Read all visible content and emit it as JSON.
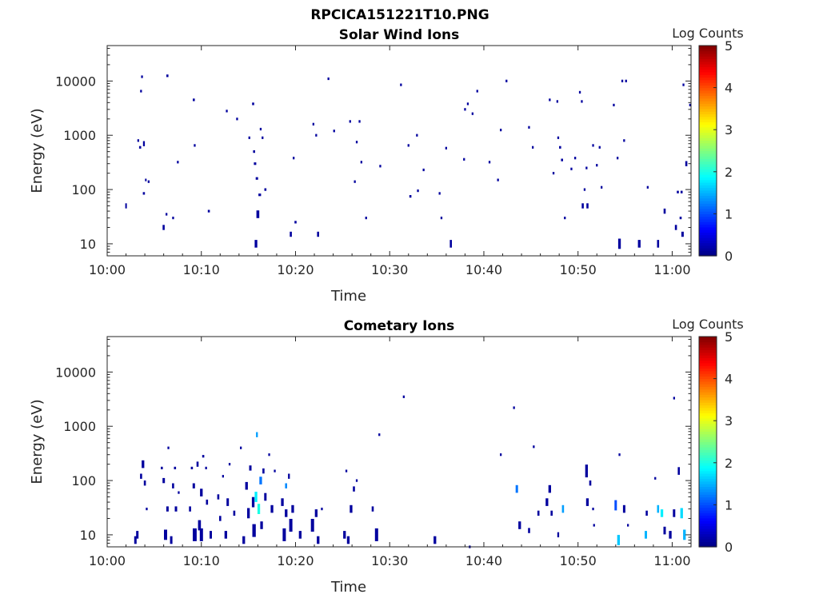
{
  "figure_title": "RPCICA151221T10.PNG",
  "chart_data": [
    {
      "type": "heatmap",
      "title": "Solar Wind Ions",
      "xlabel": "Time",
      "ylabel": "Energy (eV)",
      "x_ticks": [
        "10:00",
        "10:10",
        "10:20",
        "10:30",
        "10:40",
        "10:50",
        "11:00"
      ],
      "x_range_minutes": [
        0,
        62
      ],
      "y_ticks": [
        "10",
        "100",
        "1000",
        "10000"
      ],
      "y_scale": "log",
      "y_range": [
        6,
        45000
      ],
      "colorbar": {
        "label": "Log Counts",
        "ticks": [
          "0",
          "1",
          "2",
          "3",
          "4",
          "5"
        ],
        "range": [
          0,
          5
        ],
        "colormap": "jet"
      },
      "cells": [
        [
          2.0,
          50,
          0.6,
          2
        ],
        [
          3.3,
          800,
          0.7,
          1
        ],
        [
          3.5,
          600,
          0.8,
          1
        ],
        [
          3.7,
          12000,
          0.7,
          1
        ],
        [
          3.6,
          6500,
          0.7,
          1
        ],
        [
          3.9,
          700,
          0.7,
          2
        ],
        [
          4.1,
          150,
          0.6,
          1
        ],
        [
          4.4,
          140,
          0.7,
          1
        ],
        [
          3.9,
          85,
          0.8,
          1
        ],
        [
          6.0,
          20,
          0.8,
          2
        ],
        [
          6.3,
          35,
          0.7,
          1
        ],
        [
          6.4,
          12500,
          0.8,
          1
        ],
        [
          7.0,
          30,
          0.7,
          1
        ],
        [
          7.5,
          320,
          0.7,
          1
        ],
        [
          9.2,
          4500,
          0.8,
          1
        ],
        [
          9.3,
          650,
          0.7,
          1
        ],
        [
          10.8,
          40,
          0.8,
          1
        ],
        [
          12.7,
          2800,
          0.7,
          1
        ],
        [
          13.8,
          2000,
          0.7,
          1
        ],
        [
          15.1,
          900,
          0.7,
          1
        ],
        [
          15.5,
          3800,
          0.8,
          1
        ],
        [
          15.6,
          500,
          0.8,
          1
        ],
        [
          15.7,
          300,
          0.9,
          1
        ],
        [
          15.8,
          10,
          1.0,
          3
        ],
        [
          15.9,
          160,
          0.9,
          1
        ],
        [
          16.0,
          35,
          1.1,
          3
        ],
        [
          16.2,
          80,
          1.0,
          1
        ],
        [
          16.3,
          1300,
          0.7,
          1
        ],
        [
          16.5,
          900,
          0.7,
          1
        ],
        [
          16.8,
          100,
          0.8,
          1
        ],
        [
          19.5,
          15,
          0.8,
          2
        ],
        [
          19.8,
          380,
          0.7,
          1
        ],
        [
          20.0,
          25,
          0.8,
          1
        ],
        [
          21.9,
          1600,
          0.7,
          1
        ],
        [
          22.2,
          1000,
          0.7,
          1
        ],
        [
          22.4,
          15,
          0.8,
          2
        ],
        [
          23.5,
          11000,
          0.7,
          1
        ],
        [
          24.1,
          1200,
          0.7,
          1
        ],
        [
          25.8,
          1800,
          0.7,
          1
        ],
        [
          26.3,
          140,
          0.7,
          1
        ],
        [
          26.5,
          750,
          0.7,
          1
        ],
        [
          26.8,
          1800,
          0.7,
          1
        ],
        [
          27.0,
          320,
          0.7,
          1
        ],
        [
          27.5,
          30,
          0.7,
          1
        ],
        [
          29.0,
          270,
          0.7,
          1
        ],
        [
          31.2,
          8500,
          0.7,
          1
        ],
        [
          32.0,
          650,
          0.7,
          1
        ],
        [
          32.2,
          75,
          0.8,
          1
        ],
        [
          32.9,
          1000,
          0.7,
          1
        ],
        [
          33.0,
          95,
          0.7,
          1
        ],
        [
          33.6,
          230,
          0.7,
          1
        ],
        [
          35.3,
          85,
          0.7,
          1
        ],
        [
          35.5,
          30,
          0.7,
          1
        ],
        [
          36.0,
          580,
          0.7,
          1
        ],
        [
          36.5,
          10,
          0.8,
          3
        ],
        [
          37.9,
          360,
          0.7,
          1
        ],
        [
          38.0,
          3000,
          0.7,
          1
        ],
        [
          38.3,
          3800,
          0.7,
          1
        ],
        [
          38.8,
          2500,
          0.7,
          1
        ],
        [
          39.3,
          6500,
          0.7,
          1
        ],
        [
          40.6,
          320,
          0.7,
          1
        ],
        [
          41.8,
          1250,
          0.7,
          1
        ],
        [
          41.5,
          150,
          0.7,
          1
        ],
        [
          42.4,
          10000,
          0.7,
          1
        ],
        [
          44.8,
          1400,
          0.7,
          1
        ],
        [
          45.2,
          600,
          0.7,
          1
        ],
        [
          47.0,
          4500,
          0.7,
          1
        ],
        [
          47.4,
          200,
          0.7,
          1
        ],
        [
          47.8,
          4200,
          0.7,
          1
        ],
        [
          47.9,
          900,
          0.7,
          1
        ],
        [
          48.1,
          600,
          0.8,
          1
        ],
        [
          48.3,
          350,
          0.8,
          1
        ],
        [
          48.6,
          30,
          0.7,
          1
        ],
        [
          49.3,
          240,
          0.7,
          1
        ],
        [
          49.7,
          380,
          0.7,
          1
        ],
        [
          50.2,
          6200,
          0.7,
          1
        ],
        [
          50.4,
          4200,
          0.7,
          1
        ],
        [
          50.5,
          50,
          0.8,
          2
        ],
        [
          50.7,
          100,
          0.7,
          1
        ],
        [
          50.9,
          250,
          0.7,
          1
        ],
        [
          51.0,
          50,
          0.8,
          2
        ],
        [
          51.6,
          650,
          0.7,
          1
        ],
        [
          52.0,
          280,
          0.7,
          1
        ],
        [
          52.3,
          600,
          0.7,
          1
        ],
        [
          52.5,
          110,
          0.7,
          1
        ],
        [
          53.8,
          3600,
          0.7,
          1
        ],
        [
          54.2,
          380,
          0.7,
          1
        ],
        [
          54.4,
          10,
          1.0,
          4
        ],
        [
          54.7,
          10000,
          0.7,
          1
        ],
        [
          54.9,
          800,
          0.7,
          1
        ],
        [
          55.1,
          10000,
          0.7,
          1
        ],
        [
          56.5,
          10,
          1.0,
          3
        ],
        [
          57.4,
          110,
          0.7,
          1
        ],
        [
          58.5,
          10,
          0.8,
          3
        ],
        [
          59.2,
          40,
          0.8,
          2
        ],
        [
          60.4,
          20,
          0.8,
          2
        ],
        [
          60.6,
          90,
          0.8,
          1
        ],
        [
          60.9,
          30,
          0.8,
          1
        ],
        [
          61.0,
          90,
          0.8,
          1
        ],
        [
          61.1,
          15,
          0.9,
          2
        ],
        [
          61.2,
          8500,
          0.7,
          1
        ],
        [
          61.5,
          300,
          0.8,
          2
        ],
        [
          61.9,
          3600,
          0.7,
          1
        ]
      ]
    },
    {
      "type": "heatmap",
      "title": "Cometary Ions",
      "xlabel": "Time",
      "ylabel": "Energy (eV)",
      "x_ticks": [
        "10:00",
        "10:10",
        "10:20",
        "10:30",
        "10:40",
        "10:50",
        "11:00"
      ],
      "x_range_minutes": [
        0,
        62
      ],
      "y_ticks": [
        "10",
        "100",
        "1000",
        "10000"
      ],
      "y_scale": "log",
      "y_range": [
        6,
        45000
      ],
      "colorbar": {
        "label": "Log Counts",
        "ticks": [
          "0",
          "1",
          "2",
          "3",
          "4",
          "5"
        ],
        "range": [
          0,
          5
        ],
        "colormap": "jet"
      },
      "cells": [
        [
          3.0,
          8,
          0.9,
          3
        ],
        [
          3.2,
          10,
          0.9,
          3
        ],
        [
          3.6,
          120,
          0.8,
          2
        ],
        [
          3.8,
          200,
          1.0,
          3
        ],
        [
          4.0,
          90,
          0.8,
          2
        ],
        [
          4.2,
          30,
          0.7,
          1
        ],
        [
          5.8,
          170,
          0.8,
          1
        ],
        [
          6.0,
          100,
          0.9,
          2
        ],
        [
          6.2,
          10,
          1.2,
          4
        ],
        [
          6.4,
          30,
          0.9,
          2
        ],
        [
          6.5,
          400,
          0.7,
          1
        ],
        [
          6.8,
          8,
          0.9,
          3
        ],
        [
          7.0,
          80,
          0.8,
          2
        ],
        [
          7.2,
          170,
          0.8,
          1
        ],
        [
          7.3,
          30,
          0.9,
          2
        ],
        [
          7.6,
          60,
          0.7,
          1
        ],
        [
          8.8,
          30,
          0.8,
          2
        ],
        [
          9.0,
          170,
          0.8,
          1
        ],
        [
          9.2,
          80,
          0.9,
          2
        ],
        [
          9.3,
          10,
          1.5,
          5
        ],
        [
          9.6,
          200,
          0.8,
          2
        ],
        [
          9.8,
          15,
          1.1,
          4
        ],
        [
          10.0,
          10,
          1.2,
          5
        ],
        [
          10.0,
          60,
          1.0,
          3
        ],
        [
          10.2,
          280,
          0.8,
          1
        ],
        [
          10.5,
          170,
          0.7,
          1
        ],
        [
          10.6,
          40,
          0.8,
          2
        ],
        [
          11.0,
          10,
          0.9,
          3
        ],
        [
          11.8,
          50,
          0.8,
          2
        ],
        [
          12.0,
          20,
          0.8,
          2
        ],
        [
          12.3,
          120,
          0.7,
          1
        ],
        [
          12.6,
          10,
          1.0,
          3
        ],
        [
          12.8,
          40,
          0.9,
          3
        ],
        [
          13.0,
          200,
          0.7,
          1
        ],
        [
          13.5,
          25,
          0.8,
          2
        ],
        [
          14.2,
          400,
          0.7,
          1
        ],
        [
          14.5,
          8,
          1.0,
          3
        ],
        [
          14.8,
          80,
          1.0,
          3
        ],
        [
          15.0,
          25,
          1.0,
          4
        ],
        [
          15.2,
          170,
          0.9,
          2
        ],
        [
          15.5,
          40,
          1.0,
          4
        ],
        [
          15.6,
          12,
          1.3,
          5
        ],
        [
          15.8,
          50,
          1.0,
          4,
          1.8
        ],
        [
          15.9,
          700,
          0.7,
          2,
          1.4
        ],
        [
          16.1,
          30,
          1.0,
          4,
          2.0
        ],
        [
          16.3,
          100,
          1.0,
          3,
          1.2
        ],
        [
          16.4,
          15,
          1.0,
          3
        ],
        [
          16.6,
          150,
          0.8,
          2
        ],
        [
          16.8,
          50,
          0.9,
          3
        ],
        [
          17.2,
          300,
          0.7,
          1
        ],
        [
          17.5,
          30,
          1.0,
          3
        ],
        [
          17.8,
          150,
          0.7,
          1
        ],
        [
          18.6,
          40,
          1.0,
          3
        ],
        [
          18.8,
          10,
          1.2,
          5
        ],
        [
          19.0,
          25,
          1.0,
          3
        ],
        [
          19.0,
          80,
          0.8,
          2,
          1.3
        ],
        [
          19.3,
          120,
          0.7,
          2
        ],
        [
          19.5,
          15,
          1.2,
          5
        ],
        [
          19.7,
          30,
          1.0,
          3
        ],
        [
          20.5,
          10,
          1.0,
          3
        ],
        [
          21.8,
          15,
          1.2,
          5
        ],
        [
          22.2,
          25,
          1.0,
          3
        ],
        [
          22.4,
          8,
          1.0,
          3
        ],
        [
          22.8,
          30,
          0.7,
          1
        ],
        [
          25.2,
          10,
          1.0,
          3
        ],
        [
          25.4,
          150,
          0.7,
          1
        ],
        [
          25.6,
          8,
          1.0,
          3
        ],
        [
          25.9,
          30,
          1.0,
          3
        ],
        [
          26.2,
          70,
          0.8,
          2
        ],
        [
          26.5,
          100,
          0.7,
          1
        ],
        [
          28.2,
          30,
          0.8,
          2
        ],
        [
          28.6,
          10,
          1.2,
          5
        ],
        [
          28.9,
          700,
          0.7,
          1
        ],
        [
          31.5,
          3500,
          0.7,
          1
        ],
        [
          34.8,
          8,
          1.0,
          3
        ],
        [
          38.5,
          6,
          0.7,
          1
        ],
        [
          41.8,
          300,
          0.7,
          1
        ],
        [
          43.2,
          2200,
          0.7,
          1
        ],
        [
          43.5,
          70,
          0.9,
          3,
          1.2
        ],
        [
          43.8,
          15,
          1.0,
          3
        ],
        [
          44.8,
          12,
          0.8,
          2
        ],
        [
          45.3,
          420,
          0.7,
          1
        ],
        [
          45.8,
          25,
          0.8,
          2
        ],
        [
          46.7,
          40,
          1.0,
          3
        ],
        [
          47.0,
          70,
          1.0,
          3
        ],
        [
          47.2,
          25,
          0.8,
          2
        ],
        [
          47.9,
          10,
          0.7,
          2
        ],
        [
          48.4,
          30,
          0.8,
          3,
          1.4
        ],
        [
          50.9,
          150,
          1.0,
          5
        ],
        [
          51.0,
          40,
          1.0,
          3
        ],
        [
          51.3,
          90,
          0.8,
          2
        ],
        [
          51.6,
          30,
          0.7,
          1
        ],
        [
          51.7,
          15,
          0.7,
          1
        ],
        [
          54.0,
          35,
          0.9,
          4,
          1.0
        ],
        [
          54.3,
          8,
          1.0,
          4,
          1.6
        ],
        [
          54.4,
          300,
          0.7,
          1
        ],
        [
          54.9,
          30,
          0.9,
          3
        ],
        [
          55.3,
          15,
          0.7,
          1
        ],
        [
          57.2,
          10,
          0.9,
          3,
          1.5
        ],
        [
          57.3,
          25,
          0.8,
          2
        ],
        [
          58.2,
          110,
          0.7,
          1
        ],
        [
          58.5,
          30,
          0.8,
          3,
          1.5
        ],
        [
          58.9,
          25,
          1.0,
          3,
          1.8
        ],
        [
          59.2,
          12,
          0.9,
          3
        ],
        [
          59.8,
          10,
          1.0,
          3
        ],
        [
          60.2,
          25,
          0.9,
          3
        ],
        [
          60.2,
          3300,
          0.7,
          1
        ],
        [
          60.7,
          150,
          0.8,
          3
        ],
        [
          61.0,
          25,
          1.0,
          4,
          1.7
        ],
        [
          61.3,
          10,
          1.0,
          4,
          1.5
        ]
      ]
    }
  ]
}
